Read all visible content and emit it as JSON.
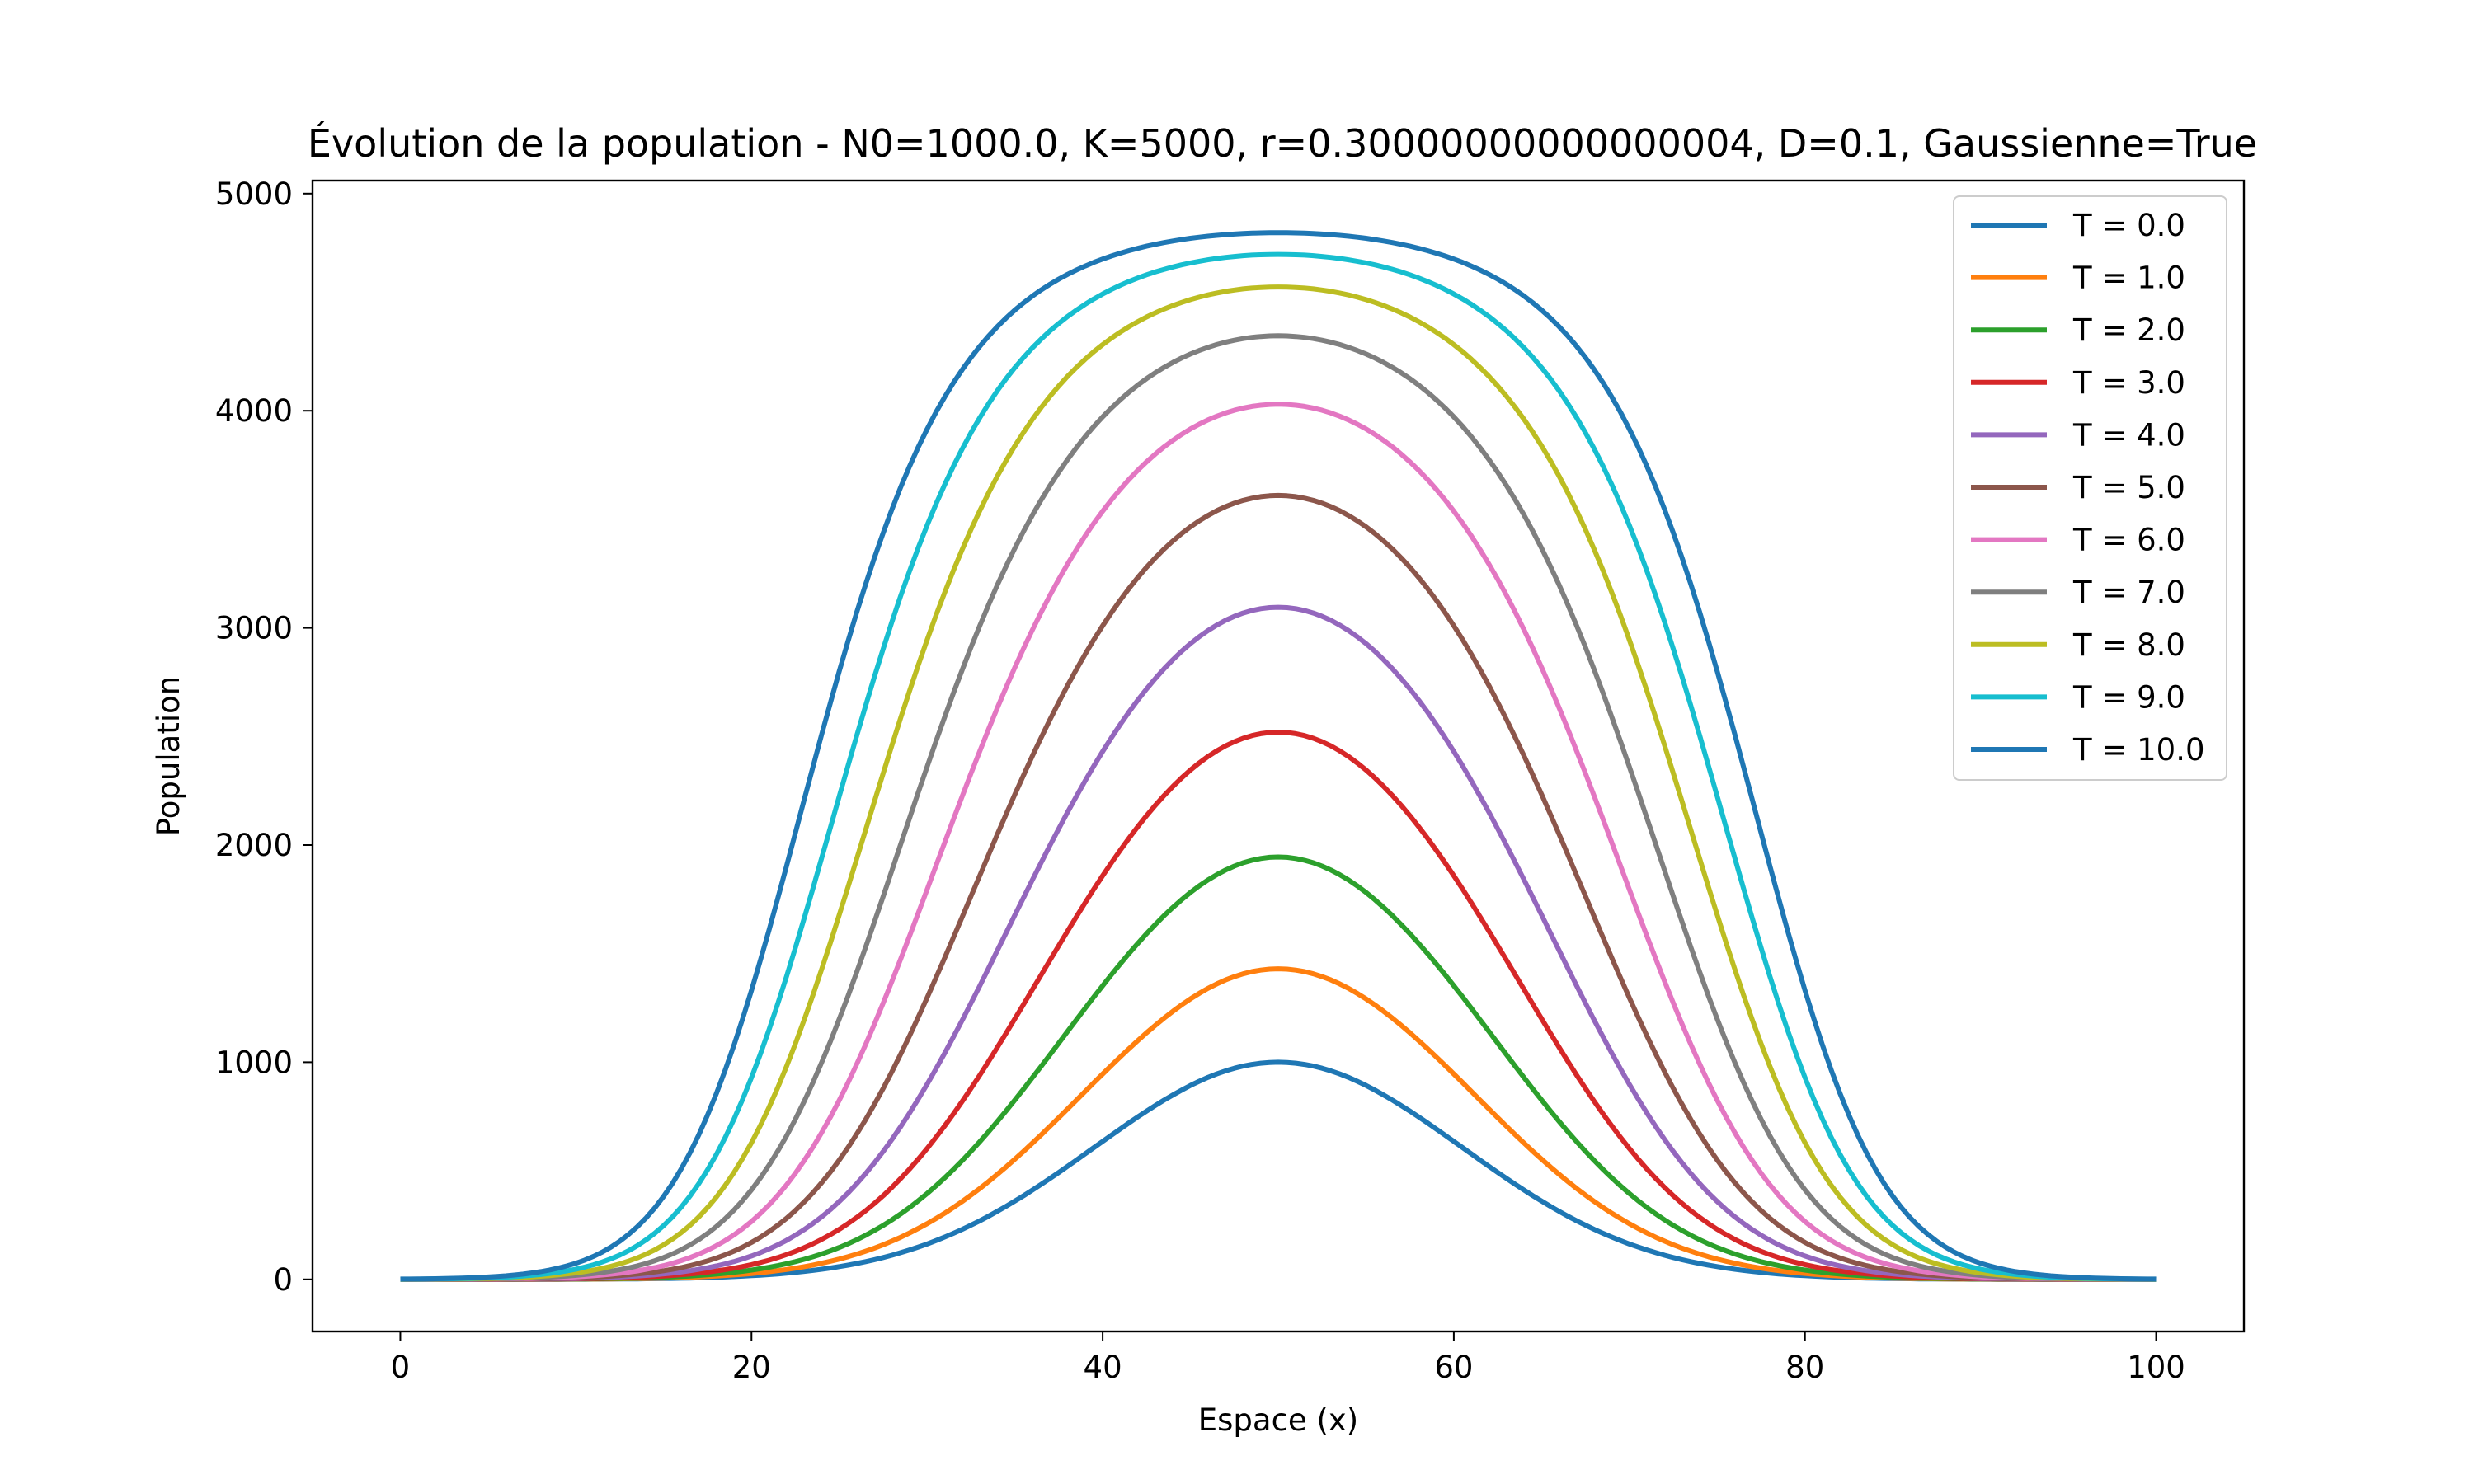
{
  "chart_data": {
    "type": "line",
    "title": "Évolution de la population - N0=1000.0, K=5000, r=0.30000000000000004, D=0.1, Gaussienne=True",
    "xlabel": "Espace (x)",
    "ylabel": "Population",
    "xlim": [
      -5,
      105
    ],
    "ylim": [
      -240,
      5060
    ],
    "xticks": [
      0,
      20,
      40,
      60,
      80,
      100
    ],
    "yticks": [
      0,
      1000,
      2000,
      3000,
      4000,
      5000
    ],
    "x_domain": [
      0,
      100
    ],
    "center": 50,
    "grid": false,
    "legend_position": "top-right",
    "series": [
      {
        "name": "T = 0.0",
        "peak": 1000,
        "color": "#1f77b4"
      },
      {
        "name": "T = 1.0",
        "peak": 1430,
        "color": "#ff7f0e"
      },
      {
        "name": "T = 2.0",
        "peak": 1945,
        "color": "#2ca02c"
      },
      {
        "name": "T = 3.0",
        "peak": 2520,
        "color": "#d62728"
      },
      {
        "name": "T = 4.0",
        "peak": 3095,
        "color": "#9467bd"
      },
      {
        "name": "T = 5.0",
        "peak": 3610,
        "color": "#8c564b"
      },
      {
        "name": "T = 6.0",
        "peak": 4030,
        "color": "#e377c2"
      },
      {
        "name": "T = 7.0",
        "peak": 4345,
        "color": "#7f7f7f"
      },
      {
        "name": "T = 8.0",
        "peak": 4570,
        "color": "#bcbd22"
      },
      {
        "name": "T = 9.0",
        "peak": 4720,
        "color": "#17becf"
      },
      {
        "name": "T = 10.0",
        "peak": 4820,
        "color": "#1f77b4"
      }
    ]
  }
}
